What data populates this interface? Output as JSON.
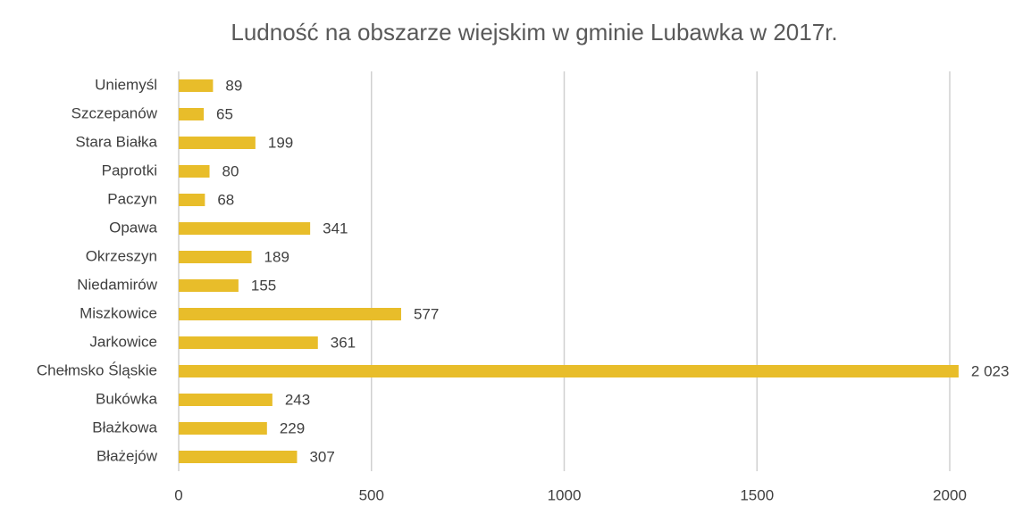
{
  "chart_data": {
    "type": "bar",
    "orientation": "horizontal",
    "title": "Ludność na obszarze wiejskim w gminie Lubawka w 2017r.",
    "categories": [
      "Uniemyśl",
      "Szczepanów",
      "Stara Białka",
      "Paprotki",
      "Paczyn",
      "Opawa",
      "Okrzeszyn",
      "Niedamirów",
      "Miszkowice",
      "Jarkowice",
      "Chełmsko Śląskie",
      "Bukówka",
      "Błażkowa",
      "Błażejów"
    ],
    "values": [
      89,
      65,
      199,
      80,
      68,
      341,
      189,
      155,
      577,
      361,
      2023,
      243,
      229,
      307
    ],
    "value_labels": [
      "89",
      "65",
      "199",
      "80",
      "68",
      "341",
      "189",
      "155",
      "577",
      "361",
      "2 023",
      "243",
      "229",
      "307"
    ],
    "color": "#e8bd2a",
    "xlim": [
      0,
      2000
    ],
    "xticks": [
      0,
      500,
      1000,
      1500,
      2000
    ],
    "grid": true
  }
}
